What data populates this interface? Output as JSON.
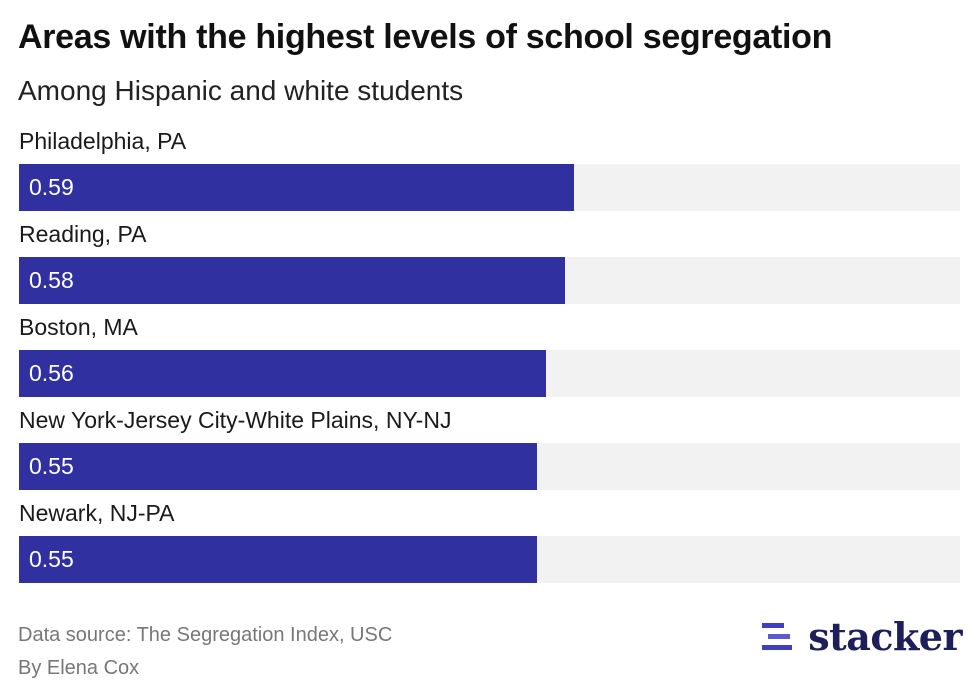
{
  "title": "Areas with the highest levels of school segregation",
  "subtitle": "Among Hispanic and white students",
  "footer": {
    "source": "Data source: The Segregation Index, USC",
    "author": "By Elena Cox"
  },
  "logo": {
    "text": "stacker",
    "icon": "stacker-lines-icon",
    "color": "#1e1e5a"
  },
  "colors": {
    "bar": "#3030a0",
    "track": "#f2f2f2"
  },
  "chart_data": {
    "type": "bar",
    "orientation": "horizontal",
    "title": "Areas with the highest levels of school segregation",
    "subtitle": "Among Hispanic and white students",
    "categories": [
      "Philadelphia, PA",
      "Reading, PA",
      "Boston, MA",
      "New York-Jersey City-White Plains, NY-NJ",
      "Newark, NJ-PA"
    ],
    "values": [
      0.59,
      0.58,
      0.56,
      0.55,
      0.55
    ],
    "value_labels": [
      "0.59",
      "0.58",
      "0.56",
      "0.55",
      "0.55"
    ],
    "xlim": [
      0,
      1.0
    ],
    "grid": false,
    "legend": "none"
  }
}
